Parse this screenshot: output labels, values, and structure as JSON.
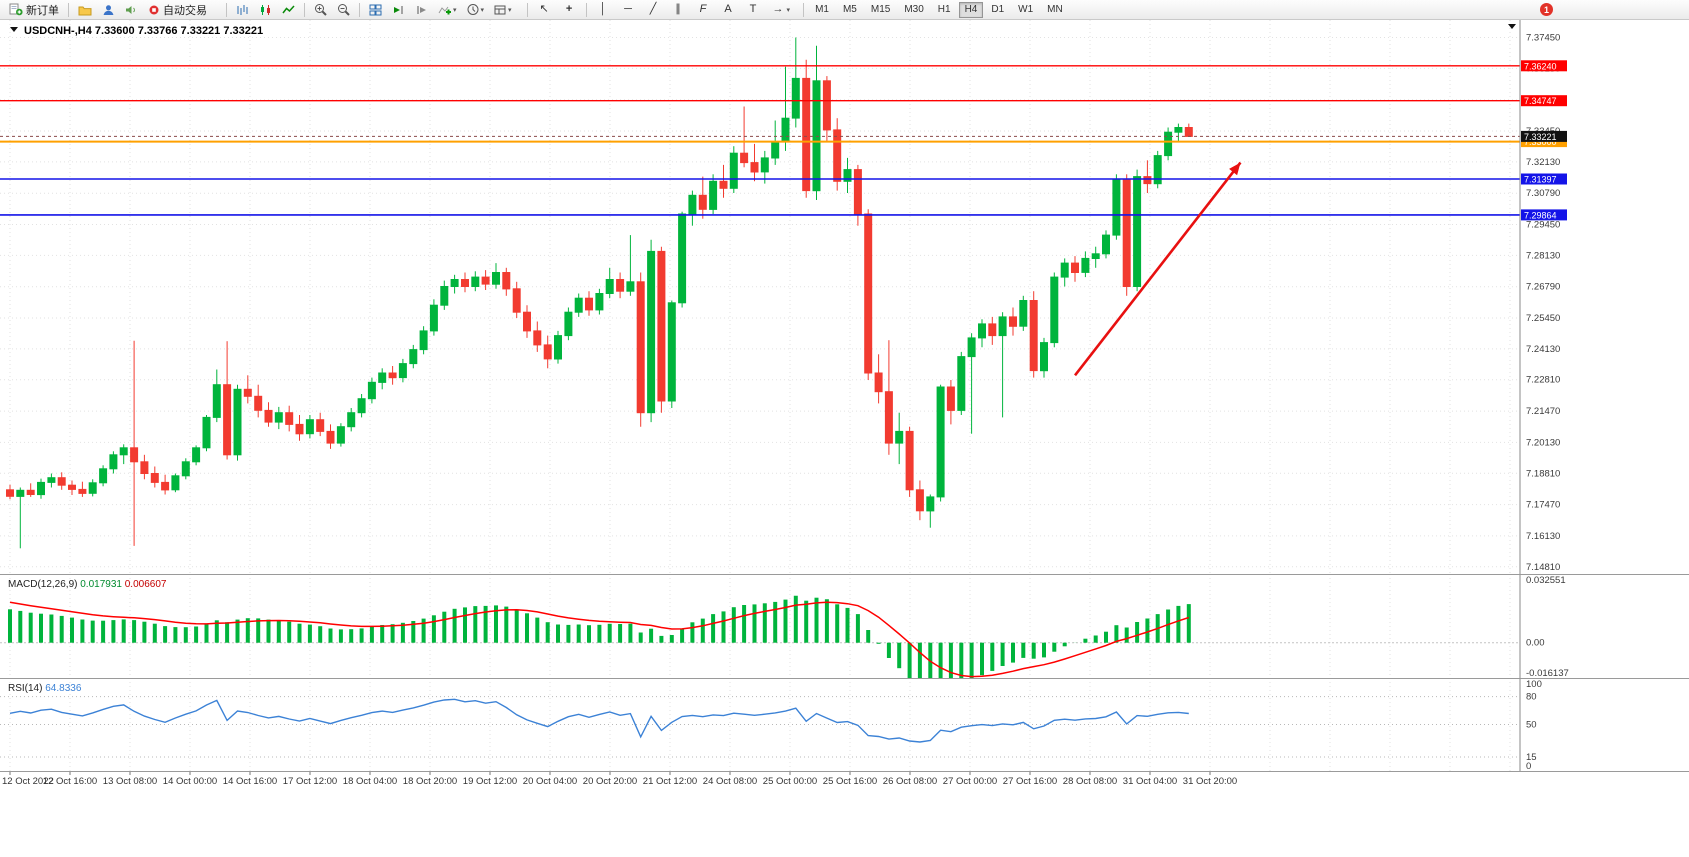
{
  "toolbar": {
    "new_order_label": "新订单",
    "autotrading_label": "自动交易",
    "caret": "▾",
    "timeframes": [
      "M1",
      "M5",
      "M15",
      "M30",
      "H1",
      "H4",
      "D1",
      "W1",
      "MN"
    ],
    "active_timeframe": "H4",
    "notification_count": "1",
    "tool_glyphs": {
      "cursor": "↖",
      "crosshair": "+",
      "vline": "│",
      "hline": "─",
      "trendline": "╱",
      "channel": "∥",
      "fibonacci": "F",
      "text": "A",
      "label": "T",
      "arrow": "→"
    }
  },
  "chart_data": [
    {
      "type": "candlestick",
      "symbol": "USDCNH-",
      "timeframe": "H4",
      "title_text": "USDCNH-,H4  7.33600 7.33766 7.33221 7.33221",
      "current_ohlc": {
        "open": 7.336,
        "high": 7.33766,
        "low": 7.33221,
        "close": 7.33221
      },
      "ylim": [
        7.145,
        7.382
      ],
      "up_color": "#00B43C",
      "down_color": "#F23B30",
      "grid_color": "#e2e2e2",
      "y_ticks": [
        "7.37450",
        "7.36130",
        "7.34790",
        "7.33450",
        "7.32130",
        "7.30790",
        "7.29450",
        "7.28130",
        "7.26790",
        "7.25450",
        "7.24130",
        "7.22810",
        "7.21470",
        "7.20130",
        "7.18810",
        "7.17470",
        "7.16130",
        "7.14810"
      ],
      "x_labels": [
        "12 Oct 2022",
        "12 Oct 16:00",
        "13 Oct 08:00",
        "14 Oct 00:00",
        "14 Oct 16:00",
        "17 Oct 12:00",
        "18 Oct 04:00",
        "18 Oct 20:00",
        "19 Oct 12:00",
        "20 Oct 04:00",
        "20 Oct 20:00",
        "21 Oct 12:00",
        "24 Oct 08:00",
        "25 Oct 00:00",
        "25 Oct 16:00",
        "26 Oct 08:00",
        "27 Oct 00:00",
        "27 Oct 16:00",
        "28 Oct 08:00",
        "31 Oct 04:00",
        "31 Oct 20:00"
      ],
      "ohlc": [
        [
          7.181,
          7.1832,
          7.177,
          7.1782
        ],
        [
          7.1782,
          7.182,
          7.156,
          7.1808
        ],
        [
          7.1808,
          7.1838,
          7.178,
          7.179
        ],
        [
          7.179,
          7.1858,
          7.1772,
          7.1842
        ],
        [
          7.1842,
          7.188,
          7.182,
          7.1862
        ],
        [
          7.1862,
          7.1885,
          7.181,
          7.183
        ],
        [
          7.183,
          7.185,
          7.1788,
          7.1812
        ],
        [
          7.1812,
          7.1845,
          7.178,
          7.1795
        ],
        [
          7.1795,
          7.1855,
          7.1782,
          7.184
        ],
        [
          7.184,
          7.1915,
          7.1825,
          7.19
        ],
        [
          7.19,
          7.1975,
          7.188,
          7.196
        ],
        [
          7.196,
          7.2005,
          7.192,
          7.199
        ],
        [
          7.199,
          7.2448,
          7.157,
          7.193
        ],
        [
          7.193,
          7.196,
          7.1855,
          7.188
        ],
        [
          7.188,
          7.191,
          7.182,
          7.1842
        ],
        [
          7.1842,
          7.1875,
          7.179,
          7.181
        ],
        [
          7.181,
          7.188,
          7.18,
          7.187
        ],
        [
          7.187,
          7.1945,
          7.1855,
          7.193
        ],
        [
          7.193,
          7.2,
          7.1915,
          7.199
        ],
        [
          7.199,
          7.213,
          7.1975,
          7.212
        ],
        [
          7.212,
          7.2325,
          7.21,
          7.226
        ],
        [
          7.226,
          7.2446,
          7.194,
          7.196
        ],
        [
          7.196,
          7.226,
          7.1935,
          7.224
        ],
        [
          7.224,
          7.23,
          7.218,
          7.221
        ],
        [
          7.221,
          7.226,
          7.212,
          7.215
        ],
        [
          7.215,
          7.2185,
          7.208,
          7.21
        ],
        [
          7.21,
          7.2165,
          7.207,
          7.214
        ],
        [
          7.214,
          7.217,
          7.206,
          7.209
        ],
        [
          7.209,
          7.213,
          7.202,
          7.205
        ],
        [
          7.205,
          7.213,
          7.203,
          7.211
        ],
        [
          7.211,
          7.214,
          7.204,
          7.206
        ],
        [
          7.206,
          7.209,
          7.1985,
          7.201
        ],
        [
          7.201,
          7.2095,
          7.1995,
          7.208
        ],
        [
          7.208,
          7.216,
          7.206,
          7.214
        ],
        [
          7.214,
          7.222,
          7.212,
          7.22
        ],
        [
          7.22,
          7.229,
          7.218,
          7.227
        ],
        [
          7.227,
          7.233,
          7.224,
          7.231
        ],
        [
          7.231,
          7.234,
          7.226,
          7.229
        ],
        [
          7.229,
          7.237,
          7.227,
          7.235
        ],
        [
          7.235,
          7.243,
          7.233,
          7.241
        ],
        [
          7.241,
          7.251,
          7.239,
          7.249
        ],
        [
          7.249,
          7.2625,
          7.247,
          7.26
        ],
        [
          7.26,
          7.2705,
          7.258,
          7.268
        ],
        [
          7.268,
          7.273,
          7.265,
          7.271
        ],
        [
          7.271,
          7.274,
          7.2655,
          7.268
        ],
        [
          7.268,
          7.2745,
          7.266,
          7.272
        ],
        [
          7.272,
          7.275,
          7.2665,
          7.269
        ],
        [
          7.269,
          7.278,
          7.267,
          7.274
        ],
        [
          7.274,
          7.276,
          7.264,
          7.267
        ],
        [
          7.267,
          7.27,
          7.2545,
          7.257
        ],
        [
          7.257,
          7.26,
          7.246,
          7.249
        ],
        [
          7.249,
          7.253,
          7.24,
          7.243
        ],
        [
          7.243,
          7.247,
          7.233,
          7.237
        ],
        [
          7.237,
          7.249,
          7.235,
          7.247
        ],
        [
          7.247,
          7.259,
          7.245,
          7.257
        ],
        [
          7.257,
          7.265,
          7.255,
          7.263
        ],
        [
          7.263,
          7.266,
          7.2555,
          7.258
        ],
        [
          7.258,
          7.267,
          7.256,
          7.265
        ],
        [
          7.265,
          7.276,
          7.263,
          7.271
        ],
        [
          7.271,
          7.274,
          7.263,
          7.266
        ],
        [
          7.266,
          7.29,
          7.264,
          7.27
        ],
        [
          7.27,
          7.274,
          7.208,
          7.214
        ],
        [
          7.214,
          7.288,
          7.21,
          7.283
        ],
        [
          7.283,
          7.285,
          7.214,
          7.219
        ],
        [
          7.219,
          7.262,
          7.216,
          7.261
        ],
        [
          7.261,
          7.3,
          7.259,
          7.299
        ],
        [
          7.299,
          7.309,
          7.294,
          7.307
        ],
        [
          7.307,
          7.315,
          7.297,
          7.301
        ],
        [
          7.301,
          7.316,
          7.299,
          7.313
        ],
        [
          7.313,
          7.32,
          7.306,
          7.31
        ],
        [
          7.31,
          7.328,
          7.308,
          7.325
        ],
        [
          7.325,
          7.345,
          7.319,
          7.321
        ],
        [
          7.321,
          7.329,
          7.313,
          7.317
        ],
        [
          7.317,
          7.326,
          7.312,
          7.323
        ],
        [
          7.323,
          7.339,
          7.32,
          7.33
        ],
        [
          7.33,
          7.362,
          7.326,
          7.34
        ],
        [
          7.34,
          7.3745,
          7.336,
          7.357
        ],
        [
          7.357,
          7.365,
          7.306,
          7.309
        ],
        [
          7.309,
          7.371,
          7.305,
          7.356
        ],
        [
          7.356,
          7.358,
          7.33,
          7.335
        ],
        [
          7.335,
          7.34,
          7.309,
          7.313
        ],
        [
          7.313,
          7.323,
          7.308,
          7.318
        ],
        [
          7.318,
          7.32,
          7.294,
          7.299
        ],
        [
          7.299,
          7.301,
          7.228,
          7.231
        ],
        [
          7.231,
          7.239,
          7.218,
          7.223
        ],
        [
          7.223,
          7.245,
          7.196,
          7.201
        ],
        [
          7.201,
          7.214,
          7.192,
          7.206
        ],
        [
          7.206,
          7.208,
          7.178,
          7.181
        ],
        [
          7.181,
          7.185,
          7.168,
          7.172
        ],
        [
          7.172,
          7.179,
          7.1648,
          7.178
        ],
        [
          7.178,
          7.226,
          7.176,
          7.225
        ],
        [
          7.225,
          7.228,
          7.209,
          7.215
        ],
        [
          7.215,
          7.24,
          7.213,
          7.238
        ],
        [
          7.238,
          7.248,
          7.205,
          7.246
        ],
        [
          7.246,
          7.254,
          7.242,
          7.252
        ],
        [
          7.252,
          7.255,
          7.243,
          7.247
        ],
        [
          7.247,
          7.257,
          7.212,
          7.255
        ],
        [
          7.255,
          7.259,
          7.247,
          7.251
        ],
        [
          7.251,
          7.264,
          7.249,
          7.262
        ],
        [
          7.262,
          7.266,
          7.229,
          7.232
        ],
        [
          7.232,
          7.246,
          7.229,
          7.244
        ],
        [
          7.244,
          7.274,
          7.242,
          7.272
        ],
        [
          7.272,
          7.28,
          7.268,
          7.278
        ],
        [
          7.278,
          7.281,
          7.27,
          7.274
        ],
        [
          7.274,
          7.283,
          7.272,
          7.28
        ],
        [
          7.28,
          7.285,
          7.276,
          7.282
        ],
        [
          7.282,
          7.292,
          7.28,
          7.29
        ],
        [
          7.29,
          7.316,
          7.288,
          7.314
        ],
        [
          7.314,
          7.316,
          7.264,
          7.268
        ],
        [
          7.268,
          7.318,
          7.266,
          7.315
        ],
        [
          7.315,
          7.322,
          7.308,
          7.312
        ],
        [
          7.312,
          7.326,
          7.31,
          7.324
        ],
        [
          7.324,
          7.336,
          7.322,
          7.334
        ],
        [
          7.334,
          7.3377,
          7.33,
          7.336
        ],
        [
          7.336,
          7.33766,
          7.33221,
          7.33221
        ]
      ],
      "hlines": [
        {
          "price": 7.3624,
          "label": "7.36240",
          "color": "#FF0000",
          "width": 1.4
        },
        {
          "price": 7.34747,
          "label": "7.34747",
          "color": "#FF0000",
          "width": 1.4
        },
        {
          "price": 7.33,
          "label": "7.33000",
          "color": "#FFA000",
          "width": 2
        },
        {
          "price": 7.31397,
          "label": "7.31397",
          "color": "#1414E8",
          "width": 1.6
        },
        {
          "price": 7.29864,
          "label": "7.29864",
          "color": "#1414E8",
          "width": 1.6
        }
      ],
      "bid_price": 7.33221,
      "bid_label": "7.33221",
      "bid_label_bg": "#111111",
      "arrow": {
        "i1": 103,
        "p1": 7.23,
        "i2": 119,
        "p2": 7.321,
        "color": "#E81010"
      }
    },
    {
      "type": "histogram+line",
      "label": "MACD(12,26,9)",
      "value1": "0.017931",
      "value2": "0.006607",
      "params": [
        12,
        26,
        9
      ],
      "y_ticks": [
        "0.032551",
        "0.00",
        "-0.016137"
      ],
      "ylim": [
        -0.018,
        0.035
      ],
      "histogram_color": "#00B43C",
      "signal_color": "#FF0000",
      "derived_from_closes": true
    },
    {
      "type": "line",
      "label": "RSI(14)",
      "value": "64.8336",
      "period": 14,
      "levels": [
        80,
        50,
        15
      ],
      "y_ticks": [
        "100",
        "80",
        "50",
        "15",
        "0"
      ],
      "ylim": [
        0,
        100
      ],
      "line_color": "#3C82D6",
      "derived_from_closes": true
    }
  ]
}
